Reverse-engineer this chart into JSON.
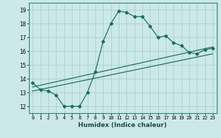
{
  "xlabel": "Humidex (Indice chaleur)",
  "bg_color": "#cce8e8",
  "grid_color": "#aacfcf",
  "line_color": "#1a7060",
  "xlim": [
    -0.5,
    23.5
  ],
  "ylim": [
    11.5,
    19.5
  ],
  "xticks": [
    0,
    1,
    2,
    3,
    4,
    5,
    6,
    7,
    8,
    9,
    10,
    11,
    12,
    13,
    14,
    15,
    16,
    17,
    18,
    19,
    20,
    21,
    22,
    23
  ],
  "yticks": [
    12,
    13,
    14,
    15,
    16,
    17,
    18,
    19
  ],
  "curve_x": [
    0,
    1,
    2,
    3,
    4,
    5,
    6,
    7,
    8,
    9,
    10,
    11,
    12,
    13,
    14,
    15,
    16,
    17,
    18,
    19,
    20,
    21,
    22,
    23
  ],
  "curve_y": [
    13.7,
    13.2,
    13.1,
    12.8,
    12.0,
    12.0,
    12.0,
    13.0,
    14.5,
    16.7,
    18.0,
    18.9,
    18.8,
    18.5,
    18.5,
    17.8,
    17.0,
    17.1,
    16.6,
    16.4,
    15.9,
    15.8,
    16.1,
    16.2
  ],
  "line1_x": [
    0,
    23
  ],
  "line1_y": [
    13.1,
    15.8
  ],
  "line2_x": [
    0,
    23
  ],
  "line2_y": [
    13.4,
    16.3
  ]
}
